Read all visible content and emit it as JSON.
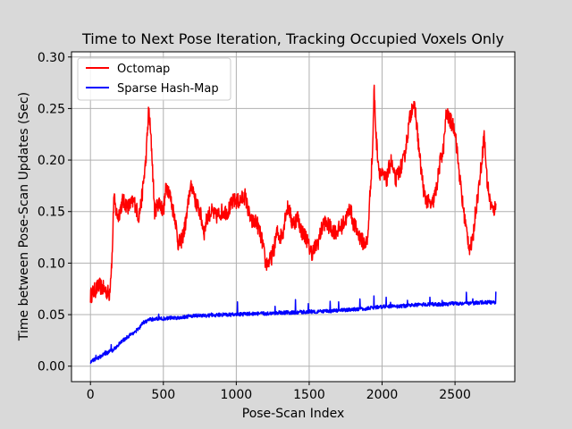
{
  "chart_data": {
    "type": "line",
    "title": "Time to Next Pose Iteration, Tracking Occupied Voxels Only",
    "xlabel": "Pose-Scan Index",
    "ylabel": "Time between Pose-Scan Updates (Sec)",
    "xlim": [
      -130,
      2910
    ],
    "ylim": [
      -0.015,
      0.305
    ],
    "xticks": [
      0,
      500,
      1000,
      1500,
      2000,
      2500
    ],
    "yticks": [
      0.0,
      0.05,
      0.1,
      0.15,
      0.2,
      0.25,
      0.3
    ],
    "xtick_labels": [
      "0",
      "500",
      "1000",
      "1500",
      "2000",
      "2500"
    ],
    "ytick_labels": [
      "0.00",
      "0.05",
      "0.10",
      "0.15",
      "0.20",
      "0.25",
      "0.30"
    ],
    "grid": true,
    "legend_position": "top-left",
    "series": [
      {
        "name": "Octomap",
        "color": "#ff0000",
        "noise": 0.008,
        "x": [
          0,
          20,
          60,
          100,
          130,
          150,
          160,
          175,
          190,
          220,
          260,
          300,
          330,
          350,
          380,
          400,
          420,
          440,
          470,
          500,
          520,
          540,
          560,
          580,
          600,
          620,
          640,
          660,
          680,
          700,
          720,
          750,
          780,
          800,
          830,
          860,
          900,
          940,
          980,
          1020,
          1060,
          1100,
          1140,
          1180,
          1200,
          1220,
          1240,
          1260,
          1280,
          1300,
          1320,
          1340,
          1360,
          1380,
          1400,
          1420,
          1450,
          1480,
          1500,
          1520,
          1560,
          1600,
          1640,
          1680,
          1720,
          1760,
          1780,
          1800,
          1830,
          1870,
          1900,
          1920,
          1935,
          1945,
          1960,
          1980,
          2000,
          2030,
          2060,
          2090,
          2120,
          2150,
          2170,
          2190,
          2210,
          2230,
          2260,
          2290,
          2310,
          2340,
          2370,
          2400,
          2420,
          2440,
          2460,
          2480,
          2500,
          2520,
          2550,
          2580,
          2600,
          2620,
          2640,
          2660,
          2680,
          2700,
          2720,
          2740,
          2760,
          2780
        ],
        "y": [
          0.068,
          0.072,
          0.078,
          0.074,
          0.07,
          0.11,
          0.165,
          0.15,
          0.145,
          0.16,
          0.155,
          0.16,
          0.145,
          0.16,
          0.2,
          0.25,
          0.21,
          0.15,
          0.16,
          0.15,
          0.175,
          0.17,
          0.155,
          0.145,
          0.12,
          0.12,
          0.13,
          0.145,
          0.17,
          0.175,
          0.16,
          0.15,
          0.13,
          0.145,
          0.15,
          0.145,
          0.15,
          0.15,
          0.16,
          0.16,
          0.165,
          0.14,
          0.14,
          0.12,
          0.1,
          0.1,
          0.105,
          0.115,
          0.13,
          0.125,
          0.13,
          0.15,
          0.155,
          0.14,
          0.14,
          0.145,
          0.13,
          0.125,
          0.115,
          0.11,
          0.12,
          0.14,
          0.135,
          0.13,
          0.135,
          0.145,
          0.155,
          0.14,
          0.13,
          0.12,
          0.12,
          0.175,
          0.21,
          0.27,
          0.22,
          0.19,
          0.185,
          0.18,
          0.2,
          0.18,
          0.19,
          0.2,
          0.22,
          0.24,
          0.255,
          0.245,
          0.2,
          0.165,
          0.16,
          0.155,
          0.17,
          0.2,
          0.21,
          0.245,
          0.24,
          0.235,
          0.23,
          0.2,
          0.16,
          0.13,
          0.115,
          0.12,
          0.15,
          0.17,
          0.195,
          0.225,
          0.18,
          0.16,
          0.15,
          0.155
        ]
      },
      {
        "name": "Sparse Hash-Map",
        "color": "#0000ff",
        "noise": 0.0018,
        "x": [
          0,
          50,
          100,
          150,
          200,
          250,
          300,
          330,
          360,
          400,
          450,
          500,
          550,
          600,
          650,
          700,
          800,
          900,
          1000,
          1100,
          1200,
          1300,
          1400,
          1500,
          1600,
          1700,
          1800,
          1900,
          1950,
          2000,
          2100,
          2200,
          2300,
          2400,
          2500,
          2600,
          2700,
          2780
        ],
        "y": [
          0.004,
          0.008,
          0.012,
          0.015,
          0.022,
          0.028,
          0.033,
          0.036,
          0.042,
          0.045,
          0.046,
          0.046,
          0.047,
          0.047,
          0.048,
          0.049,
          0.049,
          0.05,
          0.05,
          0.051,
          0.051,
          0.052,
          0.052,
          0.053,
          0.053,
          0.054,
          0.055,
          0.056,
          0.057,
          0.058,
          0.058,
          0.059,
          0.06,
          0.06,
          0.061,
          0.061,
          0.062,
          0.062
        ]
      }
    ]
  }
}
